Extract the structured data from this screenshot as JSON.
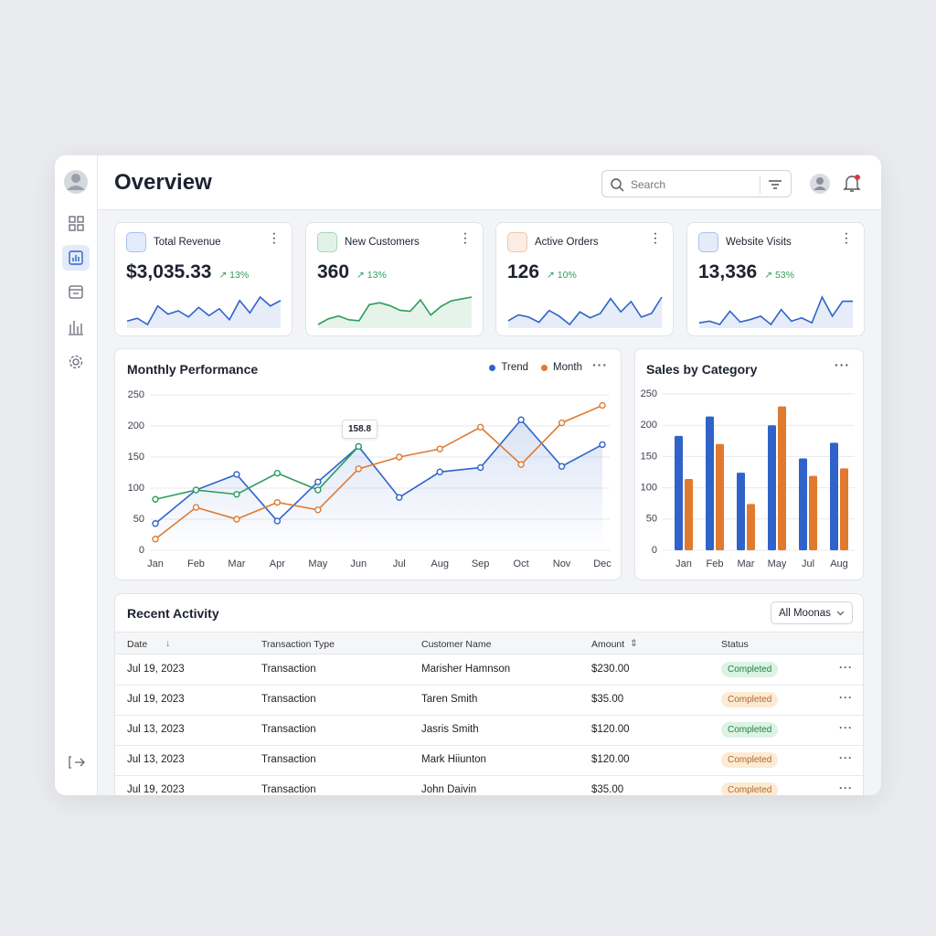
{
  "header": {
    "title": "Overview",
    "search_placeholder": "Search"
  },
  "kpis": [
    {
      "label": "Total Revenue",
      "value": "$3,035.33",
      "change": "13%",
      "icon_color": "#2f6fd6",
      "spark_color": "#2f63c9",
      "sparkline": [
        40,
        44,
        35,
        62,
        50,
        55,
        46,
        60,
        48,
        58,
        42,
        70,
        52,
        75,
        62,
        70
      ]
    },
    {
      "label": "New Customers",
      "value": "360",
      "change": "13%",
      "icon_color": "#2e9e5b",
      "spark_color": "#2e9e5b",
      "sparkline": [
        20,
        32,
        38,
        30,
        28,
        62,
        66,
        60,
        50,
        48,
        72,
        40,
        58,
        70,
        74,
        78
      ]
    },
    {
      "label": "Active Orders",
      "value": "126",
      "change": "10%",
      "icon_color": "#e07a30",
      "spark_color": "#2f63c9",
      "sparkline": [
        40,
        48,
        45,
        38,
        54,
        46,
        35,
        52,
        44,
        50,
        70,
        52,
        66,
        45,
        50,
        72
      ]
    },
    {
      "label": "Website Visits",
      "value": "13,336",
      "change": "53%",
      "icon_color": "#3a6bd0",
      "spark_color": "#2f63c9",
      "sparkline": [
        44,
        46,
        42,
        58,
        45,
        48,
        52,
        42,
        60,
        46,
        50,
        44,
        75,
        52,
        70,
        70
      ]
    }
  ],
  "chart_data": [
    {
      "type": "line",
      "title": "Monthly Performance",
      "categories": [
        "Jan",
        "Feb",
        "Mar",
        "Apr",
        "May",
        "Jun",
        "Jul",
        "Aug",
        "Sep",
        "Oct",
        "Nov",
        "Dec"
      ],
      "series": [
        {
          "name": "Trend",
          "color": "#2f63c9",
          "area": true,
          "values": [
            43,
            97,
            122,
            47,
            110,
            167,
            85,
            126,
            133,
            210,
            135,
            170
          ]
        },
        {
          "name": "Month",
          "color": "#e07a30",
          "values": [
            18,
            69,
            50,
            77,
            65,
            131,
            150,
            163,
            198,
            138,
            205,
            233
          ]
        },
        {
          "color": "#2e9e5b",
          "values": [
            82,
            97,
            90,
            124,
            97,
            167,
            null,
            null,
            null,
            null,
            null,
            null
          ]
        }
      ],
      "annotation": "158.8",
      "ylim": [
        0,
        250
      ],
      "yticks": [
        0,
        50,
        100,
        150,
        200,
        250
      ],
      "grid": true
    },
    {
      "type": "bar",
      "title": "Sales by Category",
      "categories": [
        "Jan",
        "Feb",
        "Mar",
        "May",
        "Jul",
        "Aug"
      ],
      "series": [
        {
          "color": "#2f63c9",
          "values": [
            183,
            214,
            124,
            200,
            147,
            172
          ]
        },
        {
          "color": "#e07a30",
          "values": [
            114,
            170,
            74,
            230,
            119,
            131
          ]
        }
      ],
      "ylim": [
        0,
        250
      ],
      "yticks": [
        0,
        50,
        100,
        150,
        200,
        250
      ],
      "grid": true
    }
  ],
  "activity": {
    "title": "Recent Activity",
    "filter": "All Moonas",
    "columns": [
      "Date",
      "Transaction Type",
      "Customer Name",
      "Amount",
      "Status"
    ],
    "rows": [
      {
        "date": "Jul 19, 2023",
        "type": "Transaction",
        "customer": "Marisher Hamnson",
        "amount": "$230.00",
        "status": "Completed",
        "status_color": "green"
      },
      {
        "date": "Jul 19, 2023",
        "type": "Transaction",
        "customer": "Taren Smith",
        "amount": "$35.00",
        "status": "Completed",
        "status_color": "orange"
      },
      {
        "date": "Jul 13, 2023",
        "type": "Transaction",
        "customer": "Jasris Smith",
        "amount": "$120.00",
        "status": "Completed",
        "status_color": "green"
      },
      {
        "date": "Jul 13, 2023",
        "type": "Transaction",
        "customer": "Mark Hiiunton",
        "amount": "$120.00",
        "status": "Completed",
        "status_color": "orange"
      },
      {
        "date": "Jul 19, 2023",
        "type": "Transaction",
        "customer": "John Daivin",
        "amount": "$35.00",
        "status": "Completed",
        "status_color": "orange"
      }
    ]
  }
}
